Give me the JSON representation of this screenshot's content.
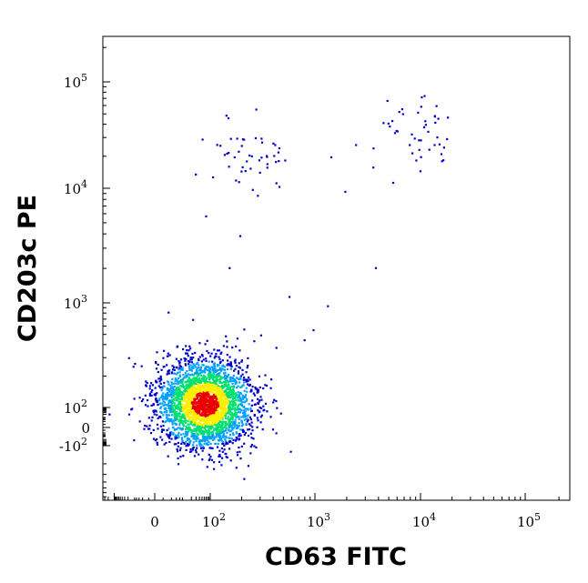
{
  "chart_data": {
    "type": "scatter",
    "title": "",
    "xlabel": "CD63 FITC",
    "ylabel": "CD203c PE",
    "x_scale": "biexponential",
    "y_scale": "biexponential",
    "xlim": [
      -300,
      250000
    ],
    "ylim": [
      -800,
      250000
    ],
    "x_ticks": [
      {
        "value": 0,
        "label": "0"
      },
      {
        "value": 100,
        "label": "10",
        "exp": "2"
      },
      {
        "value": 1000,
        "label": "10",
        "exp": "3"
      },
      {
        "value": 10000,
        "label": "10",
        "exp": "4"
      },
      {
        "value": 100000,
        "label": "10",
        "exp": "5"
      }
    ],
    "y_ticks": [
      {
        "value": -100,
        "label": "-10",
        "exp": "2"
      },
      {
        "value": 0,
        "label": "0"
      },
      {
        "value": 100,
        "label": "10",
        "exp": "2"
      },
      {
        "value": 1000,
        "label": "10",
        "exp": "3"
      },
      {
        "value": 10000,
        "label": "10",
        "exp": "4"
      },
      {
        "value": 100000,
        "label": "10",
        "exp": "5"
      }
    ],
    "grid": false,
    "legend": "none",
    "coloring": "density",
    "colors": {
      "low": "#0000c8",
      "mid_low": "#00a0ff",
      "mid": "#00e070",
      "mid_high": "#ffee00",
      "high": "#e80000"
    },
    "populations": [
      {
        "name_visible": false,
        "center_x": 60,
        "center_y": 110,
        "count": 3000,
        "density": "high"
      },
      {
        "name_visible": false,
        "center_x": 230,
        "center_y": 20000,
        "count": 50,
        "density": "low"
      },
      {
        "name_visible": false,
        "center_x": 10500,
        "center_y": 38000,
        "count": 45,
        "density": "low"
      }
    ],
    "sparse_points": [
      {
        "x": 300,
        "y": 500
      },
      {
        "x": 420,
        "y": 380
      },
      {
        "x": 560,
        "y": 1150
      },
      {
        "x": 780,
        "y": 450
      },
      {
        "x": 950,
        "y": 560
      },
      {
        "x": 1300,
        "y": 950
      },
      {
        "x": 3700,
        "y": 2050
      },
      {
        "x": 1900,
        "y": 9500
      },
      {
        "x": 3500,
        "y": 16000
      },
      {
        "x": 5400,
        "y": 11500
      },
      {
        "x": 150,
        "y": 2050
      },
      {
        "x": 190,
        "y": 3900
      },
      {
        "x": 65,
        "y": 5800
      },
      {
        "x": 1400,
        "y": 20000
      },
      {
        "x": 2400,
        "y": 26000
      }
    ]
  }
}
